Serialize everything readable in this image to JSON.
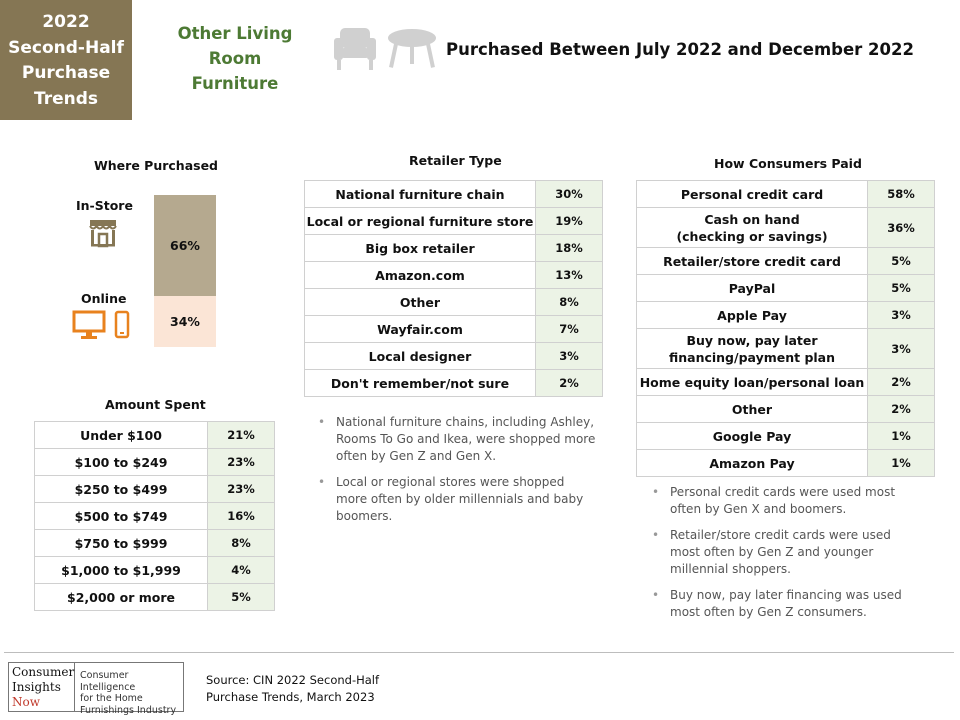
{
  "brand_box": {
    "lines": [
      "2022",
      "Second-Half",
      "Purchase",
      "Trends"
    ]
  },
  "category": {
    "lines": [
      "Other Living",
      "Room Furniture"
    ]
  },
  "header": {
    "title": "Purchased  Between July 2022 and December 2022"
  },
  "icons": {
    "items": [
      "armchair-icon",
      "coffee-table-icon",
      "store-icon",
      "monitor-icon",
      "smartphone-icon"
    ]
  },
  "where_purchased": {
    "title": "Where Purchased",
    "in_store_label": "In-Store",
    "in_store_value": "66%",
    "online_label": "Online",
    "online_value": "34%"
  },
  "amount_spent": {
    "title": "Amount Spent",
    "rows": [
      {
        "label": "Under $100",
        "value": "21%"
      },
      {
        "label": "$100 to $249",
        "value": "23%"
      },
      {
        "label": "$250 to $499",
        "value": "23%"
      },
      {
        "label": "$500 to $749",
        "value": "16%"
      },
      {
        "label": "$750 to $999",
        "value": "8%"
      },
      {
        "label": "$1,000 to $1,999",
        "value": "4%"
      },
      {
        "label": "$2,000 or more",
        "value": "5%"
      }
    ]
  },
  "retailer_type": {
    "title": "Retailer Type",
    "rows": [
      {
        "label": "National furniture chain",
        "value": "30%"
      },
      {
        "label": "Local or regional furniture store",
        "value": "19%"
      },
      {
        "label": "Big box retailer",
        "value": "18%"
      },
      {
        "label": "Amazon.com",
        "value": "13%"
      },
      {
        "label": "Other",
        "value": "8%"
      },
      {
        "label": "Wayfair.com",
        "value": "7%"
      },
      {
        "label": "Local designer",
        "value": "3%"
      },
      {
        "label": "Don't remember/not sure",
        "value": "2%"
      }
    ],
    "notes": [
      "National furniture chains, including Ashley, Rooms To Go and Ikea, were shopped more often by Gen Z and Gen X.",
      "Local or regional stores were shopped more often by older millennials and baby boomers."
    ]
  },
  "how_paid": {
    "title": "How Consumers Paid",
    "rows": [
      {
        "label": "Personal credit card",
        "value": "58%"
      },
      {
        "label": "Cash on hand",
        "label2": "(checking or savings)",
        "value": "36%"
      },
      {
        "label": "Retailer/store credit card",
        "value": "5%"
      },
      {
        "label": "PayPal",
        "value": "5%"
      },
      {
        "label": "Apple Pay",
        "value": "3%"
      },
      {
        "label": "Buy now, pay later",
        "label2": "financing/payment plan",
        "value": "3%"
      },
      {
        "label": "Home equity loan/personal loan",
        "value": "2%"
      },
      {
        "label": "Other",
        "value": "2%"
      },
      {
        "label": "Google Pay",
        "value": "1%"
      },
      {
        "label": "Amazon Pay",
        "value": "1%"
      }
    ],
    "notes": [
      "Personal credit cards were used most often by Gen X and boomers.",
      "Retailer/store credit cards were used most often by Gen Z and younger millennial shoppers.",
      "Buy now, pay later financing was used most often by Gen Z consumers."
    ]
  },
  "footer": {
    "logo_left": [
      "Consumer",
      "Insights",
      "Now"
    ],
    "logo_right": [
      "Consumer Intelligence",
      "for the Home",
      "Furnishings Industry"
    ],
    "source_lines": [
      "Source:  CIN 2022 Second-Half",
      "Purchase Trends, March 2023"
    ]
  },
  "colors": {
    "brand": "#857654",
    "category_green": "#4d7a34",
    "in_store_bar": "#b5a98f",
    "online_bar": "#fbe5d6",
    "value_cell": "#ecf3e6",
    "online_icon": "#e8821e",
    "store_icon": "#857654"
  }
}
